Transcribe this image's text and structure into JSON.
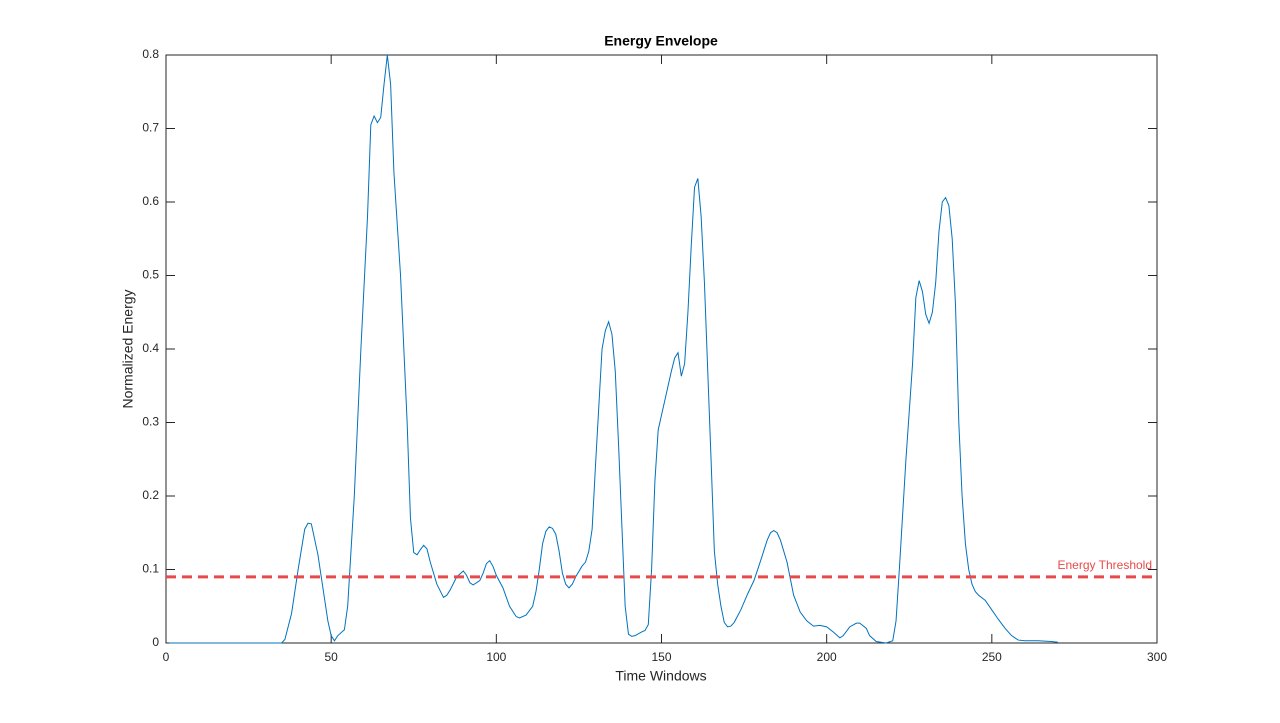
{
  "chart_data": {
    "type": "line",
    "title": "Energy Envelope",
    "xlabel": "Time Windows",
    "ylabel": "Normalized Energy",
    "color": "#0072bd",
    "x": [
      1,
      35,
      36,
      38,
      40,
      42,
      43,
      44,
      46,
      48,
      49,
      50,
      51,
      52,
      54,
      55,
      57,
      59,
      61,
      62,
      63,
      64,
      65,
      66,
      67,
      68,
      69,
      71,
      73,
      74,
      75,
      76,
      77,
      78,
      79,
      80,
      82,
      84,
      85,
      86,
      88,
      90,
      91,
      92,
      93,
      95,
      96,
      97,
      98,
      99,
      100,
      102,
      104,
      106,
      107,
      109,
      111,
      112,
      113,
      114,
      115,
      116,
      117,
      118,
      119,
      120,
      121,
      122,
      123,
      124,
      126,
      127,
      128,
      129,
      130,
      131,
      132,
      133,
      134,
      135,
      136,
      137,
      138,
      139,
      140,
      141,
      142,
      144,
      145,
      146,
      147,
      148,
      149,
      151,
      152,
      153,
      154,
      155,
      156,
      157,
      158,
      159,
      160,
      161,
      162,
      163,
      164,
      165,
      166,
      167,
      168,
      169,
      170,
      171,
      172,
      174,
      176,
      178,
      180,
      182,
      183,
      184,
      185,
      186,
      188,
      190,
      192,
      194,
      196,
      198,
      200,
      202,
      204,
      205,
      207,
      209,
      210,
      212,
      213,
      215,
      218,
      220,
      221,
      222,
      224,
      226,
      227,
      228,
      229,
      230,
      231,
      232,
      233,
      234,
      235,
      236,
      237,
      238,
      239,
      240,
      241,
      242,
      243,
      244,
      245,
      246,
      248,
      250,
      252,
      254,
      256,
      258,
      260,
      264,
      268,
      270
    ],
    "values": [
      0,
      0,
      0.005,
      0.04,
      0.1,
      0.155,
      0.163,
      0.162,
      0.12,
      0.06,
      0.03,
      0.01,
      0.003,
      0.01,
      0.018,
      0.05,
      0.2,
      0.4,
      0.58,
      0.705,
      0.717,
      0.708,
      0.715,
      0.76,
      0.8,
      0.76,
      0.64,
      0.5,
      0.3,
      0.17,
      0.123,
      0.12,
      0.127,
      0.133,
      0.128,
      0.11,
      0.08,
      0.062,
      0.065,
      0.072,
      0.09,
      0.098,
      0.092,
      0.082,
      0.079,
      0.085,
      0.095,
      0.108,
      0.112,
      0.104,
      0.092,
      0.075,
      0.05,
      0.036,
      0.034,
      0.038,
      0.05,
      0.07,
      0.1,
      0.135,
      0.152,
      0.158,
      0.156,
      0.148,
      0.125,
      0.095,
      0.08,
      0.075,
      0.08,
      0.09,
      0.105,
      0.11,
      0.125,
      0.155,
      0.24,
      0.32,
      0.4,
      0.425,
      0.437,
      0.42,
      0.37,
      0.27,
      0.16,
      0.05,
      0.012,
      0.009,
      0.01,
      0.015,
      0.017,
      0.025,
      0.1,
      0.22,
      0.29,
      0.33,
      0.35,
      0.37,
      0.388,
      0.395,
      0.363,
      0.38,
      0.45,
      0.54,
      0.62,
      0.632,
      0.58,
      0.49,
      0.37,
      0.25,
      0.125,
      0.08,
      0.05,
      0.028,
      0.022,
      0.023,
      0.028,
      0.045,
      0.066,
      0.085,
      0.112,
      0.14,
      0.15,
      0.153,
      0.15,
      0.14,
      0.11,
      0.065,
      0.042,
      0.03,
      0.023,
      0.024,
      0.022,
      0.015,
      0.007,
      0.01,
      0.022,
      0.027,
      0.027,
      0.02,
      0.01,
      0.002,
      0,
      0.003,
      0.03,
      0.1,
      0.25,
      0.38,
      0.47,
      0.493,
      0.478,
      0.447,
      0.435,
      0.45,
      0.49,
      0.56,
      0.6,
      0.606,
      0.595,
      0.55,
      0.46,
      0.3,
      0.2,
      0.135,
      0.1,
      0.08,
      0.07,
      0.065,
      0.058,
      0.045,
      0.032,
      0.02,
      0.01,
      0.004,
      0.003,
      0.003,
      0.002,
      0.001
    ],
    "threshold": {
      "value": 0.09,
      "label": "Energy Threshold",
      "color": "#e84a4a"
    },
    "xlim": [
      0,
      300
    ],
    "xticks": [
      0,
      50,
      100,
      150,
      200,
      250,
      300
    ],
    "ylim": [
      0,
      0.8
    ],
    "yticks": [
      0,
      0.1,
      0.2,
      0.3,
      0.4,
      0.5,
      0.6,
      0.7,
      0.8
    ]
  }
}
